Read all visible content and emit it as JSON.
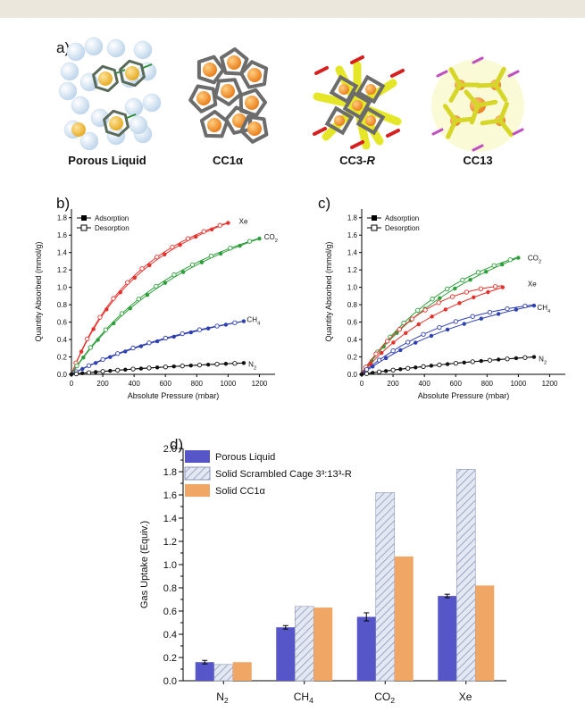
{
  "panel_labels": {
    "a": "a)",
    "b": "b)",
    "c": "c)",
    "d": "d)"
  },
  "structures": [
    {
      "label_main": "Porous Liquid",
      "label_italic": ""
    },
    {
      "label_main": "CC1α",
      "label_italic": ""
    },
    {
      "label_main": "CC3-",
      "label_italic": "R"
    },
    {
      "label_main": "CC13",
      "label_italic": ""
    }
  ],
  "chart_data": [
    {
      "id": "b",
      "type": "scatter",
      "xlabel": "Absolute Pressure (mbar)",
      "ylabel": "Quantity Absorbed (mmol/g)",
      "xlim": [
        0,
        1300
      ],
      "ylim": [
        0,
        1.9
      ],
      "xticks": [
        "0",
        "200",
        "400",
        "600",
        "800",
        "1000",
        "1200"
      ],
      "yticks": [
        "0.0",
        "0.2",
        "0.4",
        "0.6",
        "0.8",
        "1.0",
        "1.2",
        "1.4",
        "1.6",
        "1.8"
      ],
      "legend": {
        "adsorption": "Adsorption",
        "desorption": "Desorption",
        "placement": "top-left"
      },
      "series": [
        {
          "name": "Xe",
          "color": "#e8302a",
          "label_pos": [
            1070,
            1.76
          ],
          "vmax": 1.74,
          "k": 0.0016,
          "xmax": 1000,
          "desorb_offset": 0.03
        },
        {
          "name": "CO2",
          "color": "#2e9e3a",
          "label_pos": [
            1230,
            1.58
          ],
          "vmax": 1.56,
          "k": 0.0009,
          "xmax": 1200,
          "desorb_offset": 0.03
        },
        {
          "name": "CH4",
          "color": "#2e3fb0",
          "label_pos": [
            1120,
            0.63
          ],
          "vmax": 0.61,
          "k": 0.0006,
          "xmax": 1100,
          "desorb_offset": 0.01
        },
        {
          "name": "N2",
          "color": "#111111",
          "label_pos": [
            1130,
            0.12
          ],
          "vmax": 0.13,
          "k": 0.0005,
          "xmax": 1100,
          "desorb_offset": 0.0
        }
      ]
    },
    {
      "id": "c",
      "type": "scatter",
      "xlabel": "Absolute Pressure (mbar)",
      "ylabel": "Quantity Absorbed (mmol/g)",
      "xlim": [
        0,
        1300
      ],
      "ylim": [
        0,
        1.9
      ],
      "xticks": [
        "0",
        "200",
        "400",
        "600",
        "800",
        "1000",
        "1200"
      ],
      "yticks": [
        "0.0",
        "0.2",
        "0.4",
        "0.6",
        "0.8",
        "1.0",
        "1.2",
        "1.4",
        "1.6",
        "1.8"
      ],
      "legend": {
        "adsorption": "Adsorption",
        "desorption": "Desorption",
        "placement": "top-left"
      },
      "series": [
        {
          "name": "CO2",
          "color": "#2e9e3a",
          "label_pos": [
            1060,
            1.34
          ],
          "vmax": 1.34,
          "k": 0.0009,
          "xmax": 1000,
          "desorb_offset": 0.05
        },
        {
          "name": "Xe",
          "color": "#e8302a",
          "label_pos": [
            1060,
            1.04
          ],
          "vmax": 1.0,
          "k": 0.0011,
          "xmax": 900,
          "desorb_offset": 0.12
        },
        {
          "name": "CH4",
          "color": "#2e3fb0",
          "label_pos": [
            1120,
            0.77
          ],
          "vmax": 0.79,
          "k": 0.0008,
          "xmax": 1100,
          "desorb_offset": 0.06
        },
        {
          "name": "N2",
          "color": "#111111",
          "label_pos": [
            1130,
            0.18
          ],
          "vmax": 0.2,
          "k": 0.0004,
          "xmax": 1100,
          "desorb_offset": 0.0
        }
      ]
    },
    {
      "id": "d",
      "type": "bar",
      "ylabel": "Gas Uptake (Equiv.)",
      "ylim": [
        0,
        2.0
      ],
      "yticks": [
        "0.0",
        "0.2",
        "0.4",
        "0.6",
        "0.8",
        "1.0",
        "1.2",
        "1.4",
        "1.6",
        "1.8",
        "2.0"
      ],
      "categories": [
        "N2",
        "CH4",
        "CO2",
        "Xe"
      ],
      "series": [
        {
          "name": "Porous Liquid",
          "color": "#5656c8",
          "pattern": "solid",
          "values": [
            0.16,
            0.46,
            0.55,
            0.73
          ],
          "errors": [
            0.015,
            0.015,
            0.035,
            0.015
          ]
        },
        {
          "name": "Solid Scrambled Cage 3³:13³-R",
          "color": "#dfe3ee",
          "pattern": "hatch",
          "values": [
            0.14,
            0.64,
            1.62,
            1.82
          ],
          "errors": [
            0,
            0,
            0,
            0
          ]
        },
        {
          "name": "Solid CC1α",
          "color": "#f0a766",
          "pattern": "solid",
          "values": [
            0.16,
            0.63,
            1.07,
            0.82
          ],
          "errors": [
            0,
            0,
            0,
            0
          ]
        }
      ],
      "legend": {
        "placement": "top-left"
      }
    }
  ]
}
